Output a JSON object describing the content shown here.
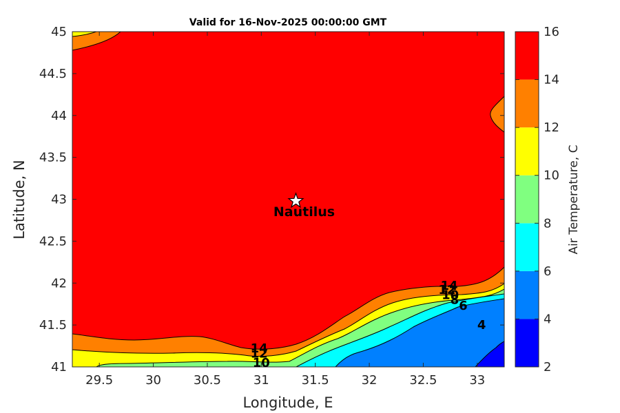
{
  "title": "Valid for 16-Nov-2025 00:00:00 GMT",
  "chart_data": {
    "type": "contour",
    "title": "Valid for 16-Nov-2025 00:00:00 GMT",
    "xlabel": "Longitude, E",
    "ylabel": "Latitude, N",
    "xlim": [
      29.25,
      33.25
    ],
    "ylim": [
      41,
      45
    ],
    "xticks": [
      "29.5",
      "30",
      "30.5",
      "31",
      "31.5",
      "32",
      "32.5",
      "33"
    ],
    "yticks": [
      "41",
      "41.5",
      "42",
      "42.5",
      "43",
      "43.5",
      "44",
      "44.5",
      "45"
    ],
    "colorbar": {
      "label": "Air Temperature, C",
      "ticks": [
        "2",
        "4",
        "6",
        "8",
        "10",
        "12",
        "14",
        "16"
      ],
      "levels": [
        2,
        4,
        6,
        8,
        10,
        12,
        14,
        16
      ],
      "colors": [
        "#0000ff",
        "#0080ff",
        "#00ffff",
        "#80ff80",
        "#ffff00",
        "#ff8000",
        "#ff0000",
        "#800000"
      ]
    },
    "contour_labels": [
      {
        "text": "14",
        "lon": 30.98,
        "lat": 41.22
      },
      {
        "text": "12",
        "lon": 30.98,
        "lat": 41.16
      },
      {
        "text": "10",
        "lon": 31.0,
        "lat": 41.05
      },
      {
        "text": "14",
        "lon": 32.74,
        "lat": 41.97
      },
      {
        "text": "12",
        "lon": 32.72,
        "lat": 41.92
      },
      {
        "text": "10",
        "lon": 32.75,
        "lat": 41.86
      },
      {
        "text": "8",
        "lon": 32.79,
        "lat": 41.8
      },
      {
        "text": "6",
        "lon": 32.87,
        "lat": 41.73
      },
      {
        "text": "4",
        "lon": 33.04,
        "lat": 41.5
      }
    ],
    "marker": {
      "name": "Nautilus",
      "lon": 31.32,
      "lat": 42.98
    }
  }
}
